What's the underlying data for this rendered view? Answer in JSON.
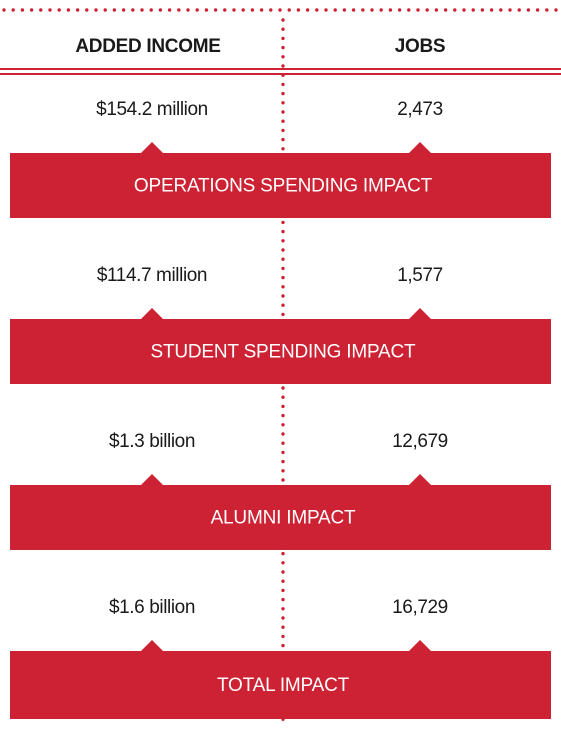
{
  "header": {
    "columns": [
      "ADDED INCOME",
      "JOBS"
    ]
  },
  "sections": [
    {
      "income": "$154.2 million",
      "jobs": "2,473",
      "label": "OPERATIONS SPENDING IMPACT"
    },
    {
      "income": "$114.7 million",
      "jobs": "1,577",
      "label": "STUDENT SPENDING IMPACT"
    },
    {
      "income": "$1.3 billion",
      "jobs": "12,679",
      "label": "ALUMNI IMPACT"
    },
    {
      "income": "$1.6 billion",
      "jobs": "16,729",
      "label": "TOTAL IMPACT"
    }
  ]
}
